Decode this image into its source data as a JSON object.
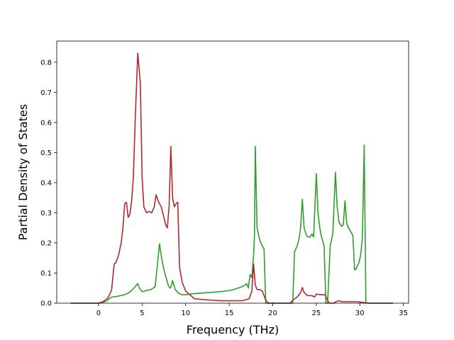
{
  "chart_data": {
    "type": "line",
    "title": "",
    "xlabel": "Frequency (THz)",
    "ylabel": "Partial Density of States",
    "xlim": [
      -4.8,
      35.6
    ],
    "ylim": [
      0.0,
      0.87
    ],
    "xticks": [
      0,
      5,
      10,
      15,
      20,
      25,
      30,
      35
    ],
    "yticks": [
      0.0,
      0.1,
      0.2,
      0.3,
      0.4,
      0.5,
      0.6,
      0.7,
      0.8
    ],
    "xtick_labels": [
      "0",
      "5",
      "10",
      "15",
      "20",
      "25",
      "30",
      "35"
    ],
    "ytick_labels": [
      "0.0",
      "0.1",
      "0.2",
      "0.3",
      "0.4",
      "0.5",
      "0.6",
      "0.7",
      "0.8"
    ],
    "grid": false,
    "legend": false,
    "series": [
      {
        "color": "#2ca02c",
        "x": [
          -3.2,
          0.0,
          0.5,
          1.0,
          1.2,
          1.5,
          2.0,
          2.5,
          3.0,
          3.5,
          4.0,
          4.3,
          4.5,
          4.7,
          5.0,
          5.5,
          6.0,
          6.3,
          6.5,
          6.8,
          7.0,
          7.3,
          7.6,
          8.0,
          8.2,
          8.3,
          8.5,
          8.8,
          9.2,
          9.6,
          10.0,
          11.0,
          12.0,
          13.0,
          14.0,
          15.0,
          15.5,
          16.0,
          16.5,
          16.8,
          17.0,
          17.2,
          17.4,
          17.6,
          17.8,
          17.9,
          18.0,
          18.2,
          18.5,
          18.8,
          19.0,
          19.2,
          19.4,
          19.8,
          20.5,
          21.5,
          22.0,
          22.3,
          22.5,
          22.8,
          23.0,
          23.2,
          23.4,
          23.6,
          23.8,
          24.0,
          24.3,
          24.5,
          24.7,
          25.0,
          25.2,
          25.4,
          25.6,
          25.9,
          26.1,
          26.3,
          26.6,
          26.9,
          27.2,
          27.4,
          27.6,
          27.9,
          28.1,
          28.3,
          28.5,
          28.7,
          28.9,
          29.2,
          29.4,
          29.6,
          29.9,
          30.1,
          30.3,
          30.5,
          30.7,
          31.0,
          33.8
        ],
        "y": [
          0.0,
          0.0,
          0.003,
          0.008,
          0.015,
          0.02,
          0.022,
          0.025,
          0.028,
          0.035,
          0.048,
          0.058,
          0.065,
          0.05,
          0.038,
          0.042,
          0.045,
          0.05,
          0.055,
          0.14,
          0.197,
          0.14,
          0.1,
          0.06,
          0.05,
          0.052,
          0.075,
          0.045,
          0.033,
          0.028,
          0.028,
          0.032,
          0.034,
          0.036,
          0.038,
          0.042,
          0.045,
          0.05,
          0.055,
          0.06,
          0.065,
          0.05,
          0.095,
          0.085,
          0.16,
          0.22,
          0.52,
          0.25,
          0.21,
          0.19,
          0.18,
          0.0,
          0.0,
          0.0,
          0.0,
          0.0,
          0.0,
          0.0,
          0.17,
          0.19,
          0.21,
          0.25,
          0.345,
          0.25,
          0.23,
          0.22,
          0.22,
          0.23,
          0.22,
          0.43,
          0.3,
          0.25,
          0.22,
          0.19,
          0.0,
          0.0,
          0.19,
          0.23,
          0.435,
          0.32,
          0.27,
          0.255,
          0.26,
          0.34,
          0.265,
          0.25,
          0.24,
          0.225,
          0.11,
          0.115,
          0.135,
          0.16,
          0.22,
          0.525,
          0.0,
          0.0,
          0.0
        ]
      },
      {
        "color": "#b2282d",
        "x": [
          -3.2,
          0.0,
          0.5,
          1.0,
          1.3,
          1.5,
          1.8,
          2.0,
          2.3,
          2.6,
          2.8,
          3.0,
          3.2,
          3.4,
          3.6,
          3.8,
          4.0,
          4.2,
          4.5,
          4.8,
          5.0,
          5.2,
          5.5,
          5.8,
          6.1,
          6.4,
          6.6,
          6.9,
          7.2,
          7.5,
          7.7,
          7.9,
          8.1,
          8.3,
          8.5,
          8.7,
          8.9,
          9.1,
          9.3,
          9.6,
          10.0,
          11.0,
          12.0,
          13.0,
          14.0,
          15.0,
          16.0,
          16.5,
          17.0,
          17.3,
          17.6,
          17.8,
          18.0,
          18.2,
          18.5,
          18.8,
          19.2,
          19.5,
          20.0,
          21.0,
          22.0,
          22.3,
          22.8,
          23.2,
          23.4,
          23.6,
          24.0,
          24.5,
          24.8,
          25.0,
          25.5,
          26.0,
          26.3,
          26.5,
          27.0,
          27.5,
          28.0,
          28.5,
          29.0,
          29.5,
          30.0,
          30.5,
          31.0,
          32.0,
          33.8
        ],
        "y": [
          0.0,
          0.0,
          0.005,
          0.015,
          0.03,
          0.045,
          0.13,
          0.135,
          0.16,
          0.2,
          0.25,
          0.33,
          0.335,
          0.285,
          0.295,
          0.34,
          0.42,
          0.6,
          0.83,
          0.73,
          0.42,
          0.32,
          0.3,
          0.305,
          0.3,
          0.32,
          0.36,
          0.335,
          0.32,
          0.285,
          0.26,
          0.25,
          0.32,
          0.52,
          0.35,
          0.32,
          0.33,
          0.335,
          0.12,
          0.07,
          0.04,
          0.015,
          0.012,
          0.01,
          0.008,
          0.008,
          0.008,
          0.008,
          0.012,
          0.015,
          0.04,
          0.13,
          0.06,
          0.045,
          0.045,
          0.04,
          0.01,
          0.0,
          0.0,
          0.0,
          0.0,
          0.01,
          0.02,
          0.035,
          0.052,
          0.035,
          0.025,
          0.025,
          0.02,
          0.03,
          0.028,
          0.028,
          0.01,
          0.0,
          0.0,
          0.008,
          0.005,
          0.005,
          0.005,
          0.005,
          0.004,
          0.002,
          0.0,
          0.0,
          0.0
        ]
      }
    ]
  }
}
